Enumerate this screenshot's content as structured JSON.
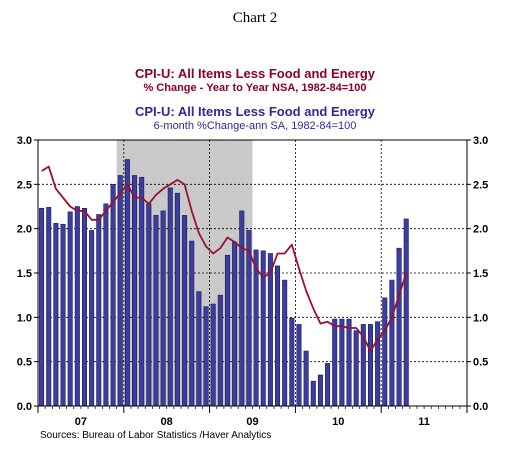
{
  "header": {
    "chart_number": "Chart 2",
    "title_line1": "CPI-U: All Items Less Food and Energy",
    "title_line2": "% Change - Year to Year     NSA, 1982-84=100",
    "title_line3": "CPI-U: All Items Less Food and Energy",
    "title_line4": "6-month %Change-ann     SA, 1982-84=100"
  },
  "footer": {
    "source": "Sources:  Bureau of Labor Statistics /Haver Analytics"
  },
  "colors": {
    "bar_fill": "#3d3d9e",
    "line": "#9b1030",
    "recession": "#c9c9c9",
    "title_red": "#8b0024",
    "title_blue": "#2b2b9a"
  },
  "chart_data": {
    "type": "bar",
    "frequency": "monthly",
    "start": "2007-01",
    "x_tick_labels": [
      "07",
      "08",
      "09",
      "10",
      "11"
    ],
    "y_ticks": [
      "0.0",
      "0.5",
      "1.0",
      "1.5",
      "2.0",
      "2.5",
      "3.0"
    ],
    "ylim": [
      0,
      3.0
    ],
    "grid": true,
    "recession_shading": {
      "start": "2007-12",
      "end": "2009-06"
    },
    "series": [
      {
        "kind": "bar",
        "axis": "left",
        "values": [
          2.23,
          2.24,
          2.06,
          2.05,
          2.19,
          2.25,
          2.23,
          1.98,
          2.16,
          2.28,
          2.5,
          2.6,
          2.78,
          2.6,
          2.58,
          2.28,
          2.15,
          2.2,
          2.46,
          2.4,
          2.15,
          1.86,
          1.29,
          1.12,
          1.15,
          1.25,
          1.7,
          1.85,
          2.2,
          1.98,
          1.76,
          1.75,
          1.72,
          1.58,
          1.42,
          0.99,
          0.92,
          0.62,
          0.28,
          0.35,
          0.48,
          0.98,
          0.98,
          0.98,
          0.85,
          0.92,
          0.92,
          0.95,
          1.22,
          1.42,
          1.78,
          2.11
        ]
      },
      {
        "kind": "line",
        "axis": "right",
        "values": [
          2.65,
          2.7,
          2.45,
          2.35,
          2.25,
          2.2,
          2.2,
          2.1,
          2.1,
          2.2,
          2.3,
          2.4,
          2.5,
          2.35,
          2.35,
          2.28,
          2.38,
          2.45,
          2.5,
          2.55,
          2.5,
          2.2,
          1.95,
          1.8,
          1.72,
          1.78,
          1.9,
          1.85,
          1.78,
          1.75,
          1.55,
          1.45,
          1.5,
          1.72,
          1.72,
          1.82,
          1.55,
          1.3,
          1.1,
          0.93,
          0.95,
          0.9,
          0.9,
          0.88,
          0.88,
          0.78,
          0.62,
          0.75,
          0.85,
          1.0,
          1.25,
          1.5
        ]
      }
    ]
  }
}
